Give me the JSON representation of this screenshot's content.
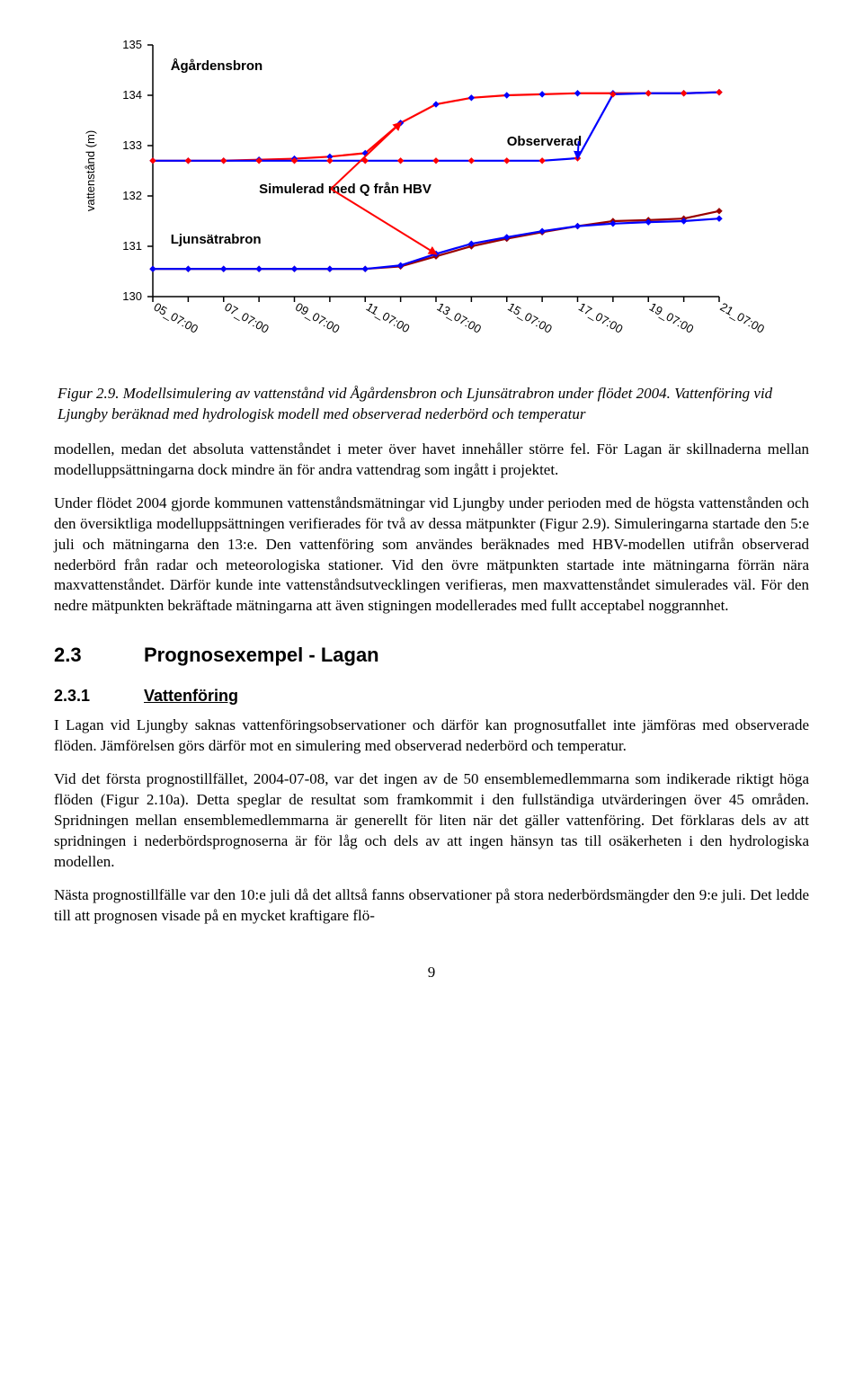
{
  "chart": {
    "type": "line",
    "title": "",
    "y_axis_label": "vattenstånd (m)",
    "y_axis_label_fontsize": 13,
    "axis_tick_fontsize": 13,
    "annotation_fontsize": 15,
    "background_color": "#ffffff",
    "axis_color": "#000000",
    "ylim": [
      130,
      135
    ],
    "yticks": [
      130,
      131,
      132,
      133,
      134,
      135
    ],
    "x_categories": [
      "05_07:00",
      "07_07:00",
      "09_07:00",
      "11_07:00",
      "13_07:00",
      "15_07:00",
      "17_07:00",
      "19_07:00",
      "21_07:00"
    ],
    "annotations": {
      "agardensbron": {
        "text": "Ågårdensbron",
        "color": "#000000",
        "fontweight": "bold"
      },
      "simulerad": {
        "text": "Simulerad med Q från HBV",
        "color": "#000000",
        "fontweight": "bold"
      },
      "observerad": {
        "text": "Observerad",
        "color": "#000000",
        "fontweight": "bold"
      },
      "ljunsatrabron": {
        "text": "Ljunsätrabron",
        "color": "#000000",
        "fontweight": "bold"
      }
    },
    "series": [
      {
        "name": "agardensbron_obs_red",
        "color": "#ff0000",
        "line_width": 2.2,
        "marker": "diamond",
        "marker_size": 6,
        "marker_color": "#0000ff",
        "y": [
          132.7,
          132.7,
          132.7,
          132.72,
          132.74,
          132.78,
          132.85,
          133.45,
          133.82,
          133.95,
          134.0,
          134.02,
          134.04,
          134.04,
          134.04,
          134.04,
          134.06
        ]
      },
      {
        "name": "agardensbron_sim_blue",
        "color": "#0000ff",
        "line_width": 2.2,
        "marker": "diamond",
        "marker_size": 6,
        "marker_color": "#ff0000",
        "y": [
          132.7,
          132.7,
          132.7,
          132.7,
          132.7,
          132.7,
          132.7,
          132.7,
          132.7,
          132.7,
          132.7,
          132.7,
          132.75,
          134.02,
          134.04,
          134.04,
          134.06
        ]
      },
      {
        "name": "ljunsatrabron_obs_darkred",
        "color": "#990000",
        "line_width": 2.2,
        "marker": "diamond",
        "marker_size": 6,
        "marker_color": "#990000",
        "y": [
          130.55,
          130.55,
          130.55,
          130.55,
          130.55,
          130.55,
          130.55,
          130.6,
          130.8,
          131.0,
          131.15,
          131.28,
          131.4,
          131.5,
          131.52,
          131.55,
          131.7
        ]
      },
      {
        "name": "ljunsatrabron_sim_blue",
        "color": "#0000ff",
        "line_width": 2.2,
        "marker": "diamond",
        "marker_size": 6,
        "marker_color": "#0000ff",
        "y": [
          130.55,
          130.55,
          130.55,
          130.55,
          130.55,
          130.55,
          130.55,
          130.62,
          130.85,
          131.05,
          131.18,
          131.3,
          131.4,
          131.45,
          131.48,
          131.5,
          131.55
        ]
      }
    ],
    "arrows": [
      {
        "color": "#ff0000",
        "from_label": "simulerad",
        "to_series": 0,
        "to_index": 7
      },
      {
        "color": "#ff0000",
        "from_label": "simulerad",
        "to_series": 3,
        "to_index": 8
      },
      {
        "color": "#0000ff",
        "from_label": "observerad",
        "to_series": 1,
        "to_index": 12
      }
    ]
  },
  "caption": {
    "lead": "Figur 2.9.",
    "text": "Modellsimulering av vattenstånd vid Ågårdensbron och Ljunsätrabron under flödet 2004. Vattenföring vid Ljungby beräknad med hydrologisk modell med observerad nederbörd och temperatur"
  },
  "paragraphs": {
    "p1": "modellen, medan det absoluta vattenståndet i meter över havet innehåller större fel. För Lagan är skillnaderna mellan modelluppsättningarna dock mindre än för andra vattendrag som ingått i projektet.",
    "p2": "Under flödet 2004 gjorde kommunen vattenståndsmätningar vid Ljungby under perioden med de högsta vattenstånden och den översiktliga modelluppsättningen verifierades för två av dessa mätpunkter (Figur 2.9). Simuleringarna startade den 5:e juli och mätningarna den 13:e. Den vattenföring som användes beräknades med HBV-modellen utifrån observerad nederbörd från radar och meteorologiska stationer. Vid den övre mätpunkten startade inte mätningarna förrän nära maxvattenståndet. Därför kunde inte vattenståndsutvecklingen verifieras, men maxvattenståndet simulerades väl. För den nedre mätpunkten bekräftade mätningarna att även stigningen modellerades med fullt acceptabel noggrannhet.",
    "p3": "I Lagan vid Ljungby saknas vattenföringsobservationer och därför kan prognosutfallet inte jämföras med observerade flöden. Jämförelsen görs därför mot en simulering med observerad nederbörd och temperatur.",
    "p4": "Vid det första prognostillfället, 2004-07-08, var det ingen av de 50 ensemblemedlemmarna som indikerade riktigt höga flöden (Figur 2.10a). Detta speglar de resultat som framkommit i den fullständiga utvärderingen över 45 områden. Spridningen mellan ensemblemedlemmarna är generellt för liten när det gäller vattenföring. Det förklaras dels av att spridningen i nederbördsprognoserna är för låg och dels av att ingen hänsyn tas till osäkerheten i den hydrologiska modellen.",
    "p5": "Nästa prognostillfälle var den 10:e juli då det alltså fanns observationer på stora nederbördsmängder den 9:e juli. Det ledde till att prognosen visade på en mycket kraftigare flö-"
  },
  "headings": {
    "h2_num": "2.3",
    "h2_title": "Prognosexempel - Lagan",
    "h3_num": "2.3.1",
    "h3_title": "Vattenföring"
  },
  "page_number": "9"
}
